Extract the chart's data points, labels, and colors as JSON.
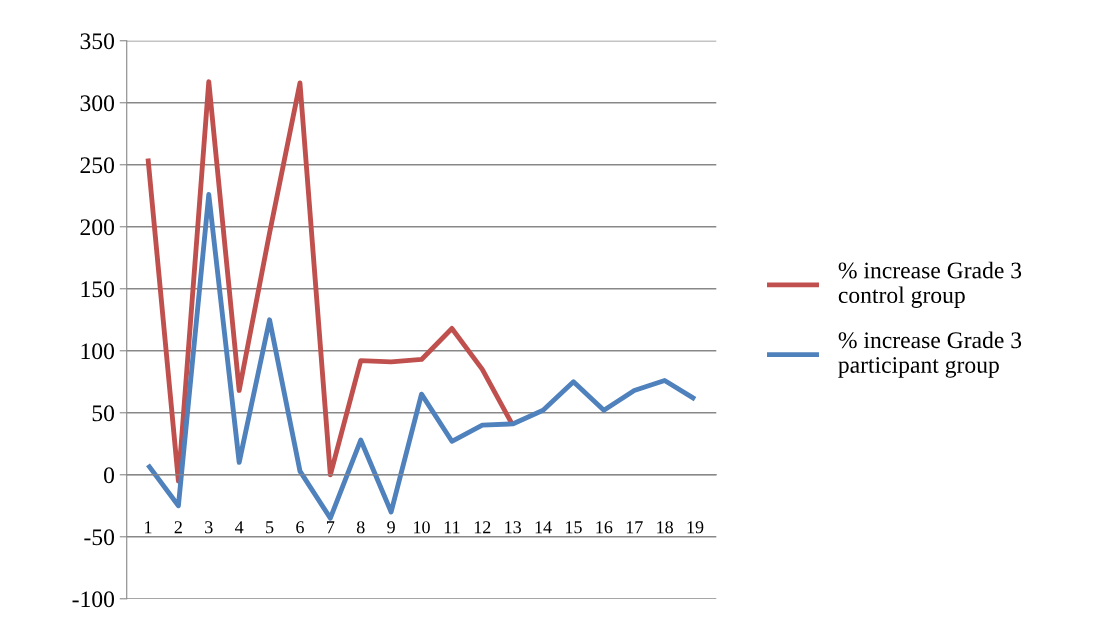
{
  "chart_data": {
    "type": "line",
    "categories": [
      "1",
      "2",
      "3",
      "4",
      "5",
      "6",
      "7",
      "8",
      "9",
      "10",
      "11",
      "12",
      "13",
      "14",
      "15",
      "16",
      "17",
      "18",
      "19"
    ],
    "series": [
      {
        "name": "% increase Grade 3\ncontrol group",
        "color": "#c0504d",
        "values": [
          255,
          -5,
          317,
          68,
          195,
          316,
          0,
          92,
          91,
          93,
          118,
          85,
          40,
          null,
          null,
          null,
          null,
          null,
          null
        ]
      },
      {
        "name": "% increase Grade 3\nparticipant group",
        "color": "#4f81bd",
        "values": [
          8,
          -25,
          226,
          10,
          125,
          3,
          -35,
          28,
          -30,
          65,
          27,
          40,
          41,
          52,
          75,
          52,
          68,
          76,
          61
        ]
      }
    ],
    "ylim": [
      -100,
      350
    ],
    "yticks": [
      -100,
      -50,
      0,
      50,
      100,
      150,
      200,
      250,
      300,
      350
    ],
    "grid": "y",
    "legend": "right",
    "marker": "none",
    "line_style": "solid"
  }
}
